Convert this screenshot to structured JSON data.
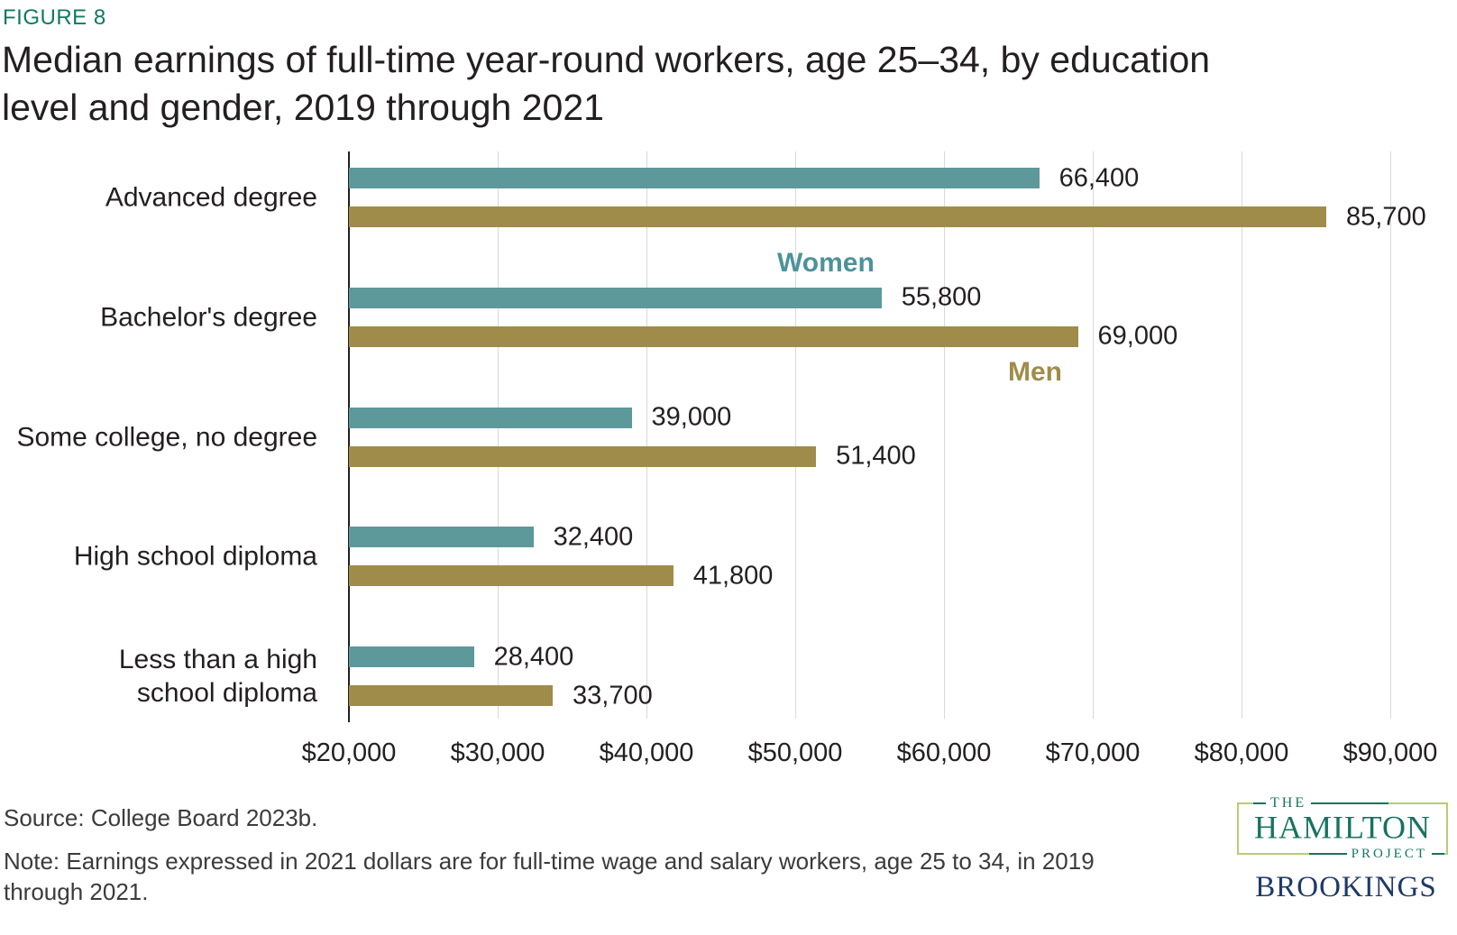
{
  "figure": {
    "label": "FIGURE 8",
    "title": "Median earnings of full-time year-round workers, age 25–34, by education level and gender, 2019 through 2021",
    "title_lines": [
      "Median earnings of full-time year-round workers, age 25–34, by education",
      "level and gender, 2019 through 2021"
    ]
  },
  "chart_data": {
    "type": "bar",
    "orientation": "horizontal",
    "title": "Median earnings of full-time year-round workers, age 25–34, by education level and gender, 2019 through 2021",
    "categories": [
      "Advanced degree",
      "Bachelor's degree",
      "Some college, no degree",
      "High school diploma",
      "Less than a high school diploma"
    ],
    "categories_display": [
      [
        "Advanced degree"
      ],
      [
        "Bachelor's degree"
      ],
      [
        "Some college, no degree"
      ],
      [
        "High school diploma"
      ],
      [
        "Less than a high",
        "school diploma"
      ]
    ],
    "series": [
      {
        "name": "Women",
        "values": [
          66400,
          55800,
          39000,
          32400,
          28400
        ],
        "labels": [
          "66,400",
          "55,800",
          "39,000",
          "32,400",
          "28,400"
        ]
      },
      {
        "name": "Men",
        "values": [
          85700,
          69000,
          51400,
          41800,
          33700
        ],
        "labels": [
          "85,700",
          "69,000",
          "51,400",
          "41,800",
          "33,700"
        ]
      }
    ],
    "legend": {
      "women_label": "Women",
      "men_label": "Men",
      "position": "inline"
    },
    "x_axis": {
      "min": 20000,
      "max": 94500,
      "tick_interval": 10000,
      "tick_values": [
        20000,
        30000,
        40000,
        50000,
        60000,
        70000,
        80000,
        90000
      ],
      "tick_labels": [
        "$20,000",
        "$30,000",
        "$40,000",
        "$50,000",
        "$60,000",
        "$70,000",
        "$80,000",
        "$90,000"
      ]
    },
    "grid": true,
    "ylabel": "",
    "xlabel": ""
  },
  "colors": {
    "women_bar": "#5d989b",
    "men_bar": "#a08c4a",
    "women_legend_text": "#4d929b",
    "men_legend_text": "#a08c4a",
    "figure_label": "#117a60",
    "grid": "#d9d9d9",
    "axis": "#231f20",
    "hamilton_green": "#17735f",
    "hamilton_border": "#b5ce73",
    "brookings_navy": "#1f3a68"
  },
  "footer": {
    "source": "Source: College Board 2023b.",
    "note_lines": [
      "Note: Earnings expressed in 2021 dollars are for full-time wage and salary workers, age 25 to 34, in 2019",
      "through 2021."
    ]
  },
  "logos": {
    "hamilton": {
      "the": "THE",
      "name": "HAMILTON",
      "project": "PROJECT"
    },
    "brookings": "BROOKINGS"
  }
}
